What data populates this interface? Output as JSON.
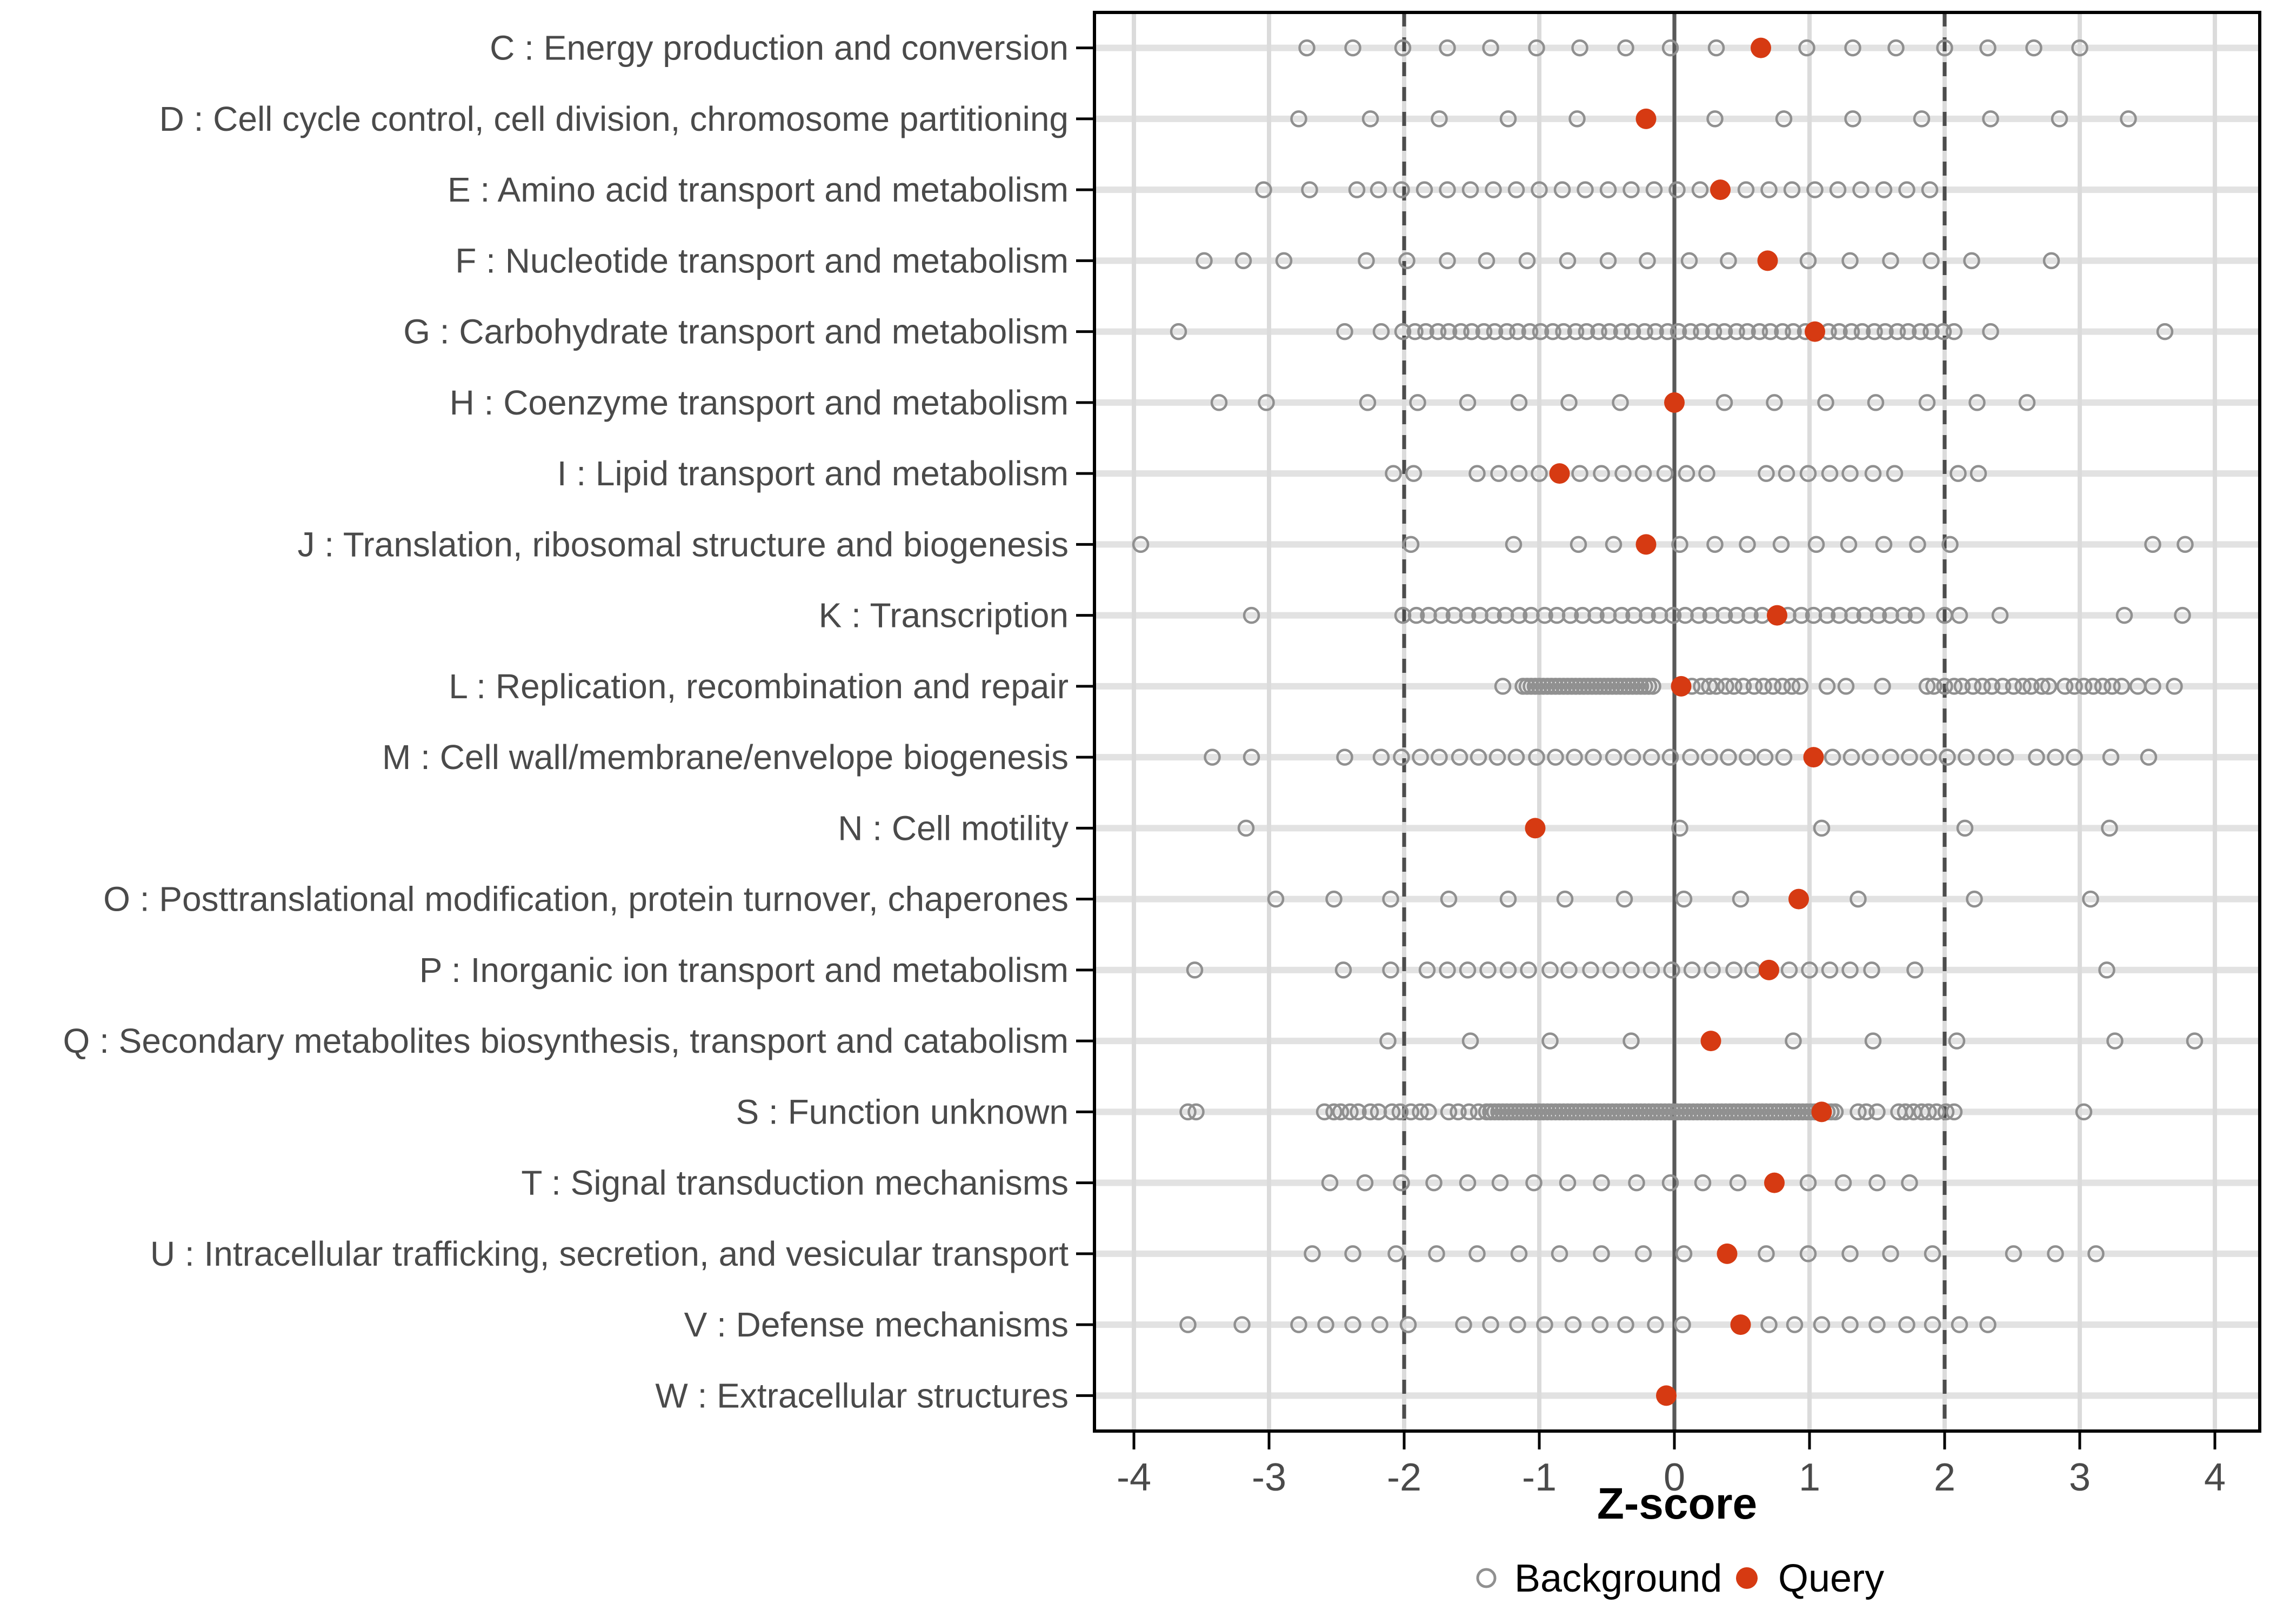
{
  "chart_data": {
    "type": "scatter",
    "title": "",
    "xlabel": "Z-score",
    "x_ticks": [
      "-4",
      "-3",
      "-2",
      "-1",
      "0",
      "1",
      "2",
      "3",
      "4"
    ],
    "x_tick_values": [
      -4,
      -3,
      -2,
      -1,
      0,
      1,
      2,
      3,
      4
    ],
    "xlim": [
      -4.29,
      4.33
    ],
    "grid": "on",
    "legend_position": "bottom",
    "reference_lines": {
      "solid_at": 0,
      "dashed_at": [
        -2,
        2
      ]
    },
    "legend": [
      {
        "label": "Background",
        "marker": "open-circle",
        "color": "#909090"
      },
      {
        "label": "Query",
        "marker": "filled-circle",
        "color": "#D63A12"
      }
    ],
    "categories": [
      {
        "code": "C",
        "label": "C : Energy production and conversion",
        "query": 0.64,
        "background": [
          -2.72,
          -2.38,
          -2.01,
          -1.68,
          -1.36,
          -1.02,
          -0.7,
          -0.36,
          -0.03,
          0.31,
          0.98,
          1.32,
          1.64,
          2.0,
          2.32,
          2.66,
          3.0
        ]
      },
      {
        "code": "D",
        "label": "D : Cell cycle control, cell division, chromosome partitioning",
        "query": -0.21,
        "background": [
          -2.78,
          -2.25,
          -1.74,
          -1.23,
          -0.72,
          0.3,
          0.81,
          1.32,
          1.83,
          2.34,
          2.85,
          3.36
        ]
      },
      {
        "code": "E",
        "label": "E : Amino acid transport and metabolism",
        "query": 0.34,
        "background": [
          -3.04,
          -2.7,
          -2.35,
          -2.19,
          -2.02,
          -1.85,
          -1.68,
          -1.51,
          -1.34,
          -1.17,
          -1.0,
          -0.83,
          -0.66,
          -0.49,
          -0.32,
          -0.15,
          0.02,
          0.19,
          0.53,
          0.7,
          0.87,
          1.04,
          1.21,
          1.38,
          1.55,
          1.72,
          1.89
        ]
      },
      {
        "code": "F",
        "label": "F : Nucleotide transport and metabolism",
        "query": 0.69,
        "background": [
          -3.48,
          -3.19,
          -2.89,
          -2.28,
          -1.98,
          -1.68,
          -1.39,
          -1.09,
          -0.79,
          -0.49,
          -0.2,
          0.11,
          0.4,
          0.99,
          1.3,
          1.6,
          1.9,
          2.2,
          2.79
        ]
      },
      {
        "code": "G",
        "label": "G : Carbohydrate transport and metabolism",
        "query": 1.04,
        "background": [
          -3.67,
          -2.44,
          -2.17,
          -2.01,
          -1.92,
          -1.84,
          -1.75,
          -1.67,
          -1.58,
          -1.5,
          -1.41,
          -1.33,
          -1.24,
          -1.16,
          -1.07,
          -0.99,
          -0.9,
          -0.82,
          -0.73,
          -0.65,
          -0.56,
          -0.48,
          -0.39,
          -0.31,
          -0.22,
          -0.14,
          -0.05,
          0.03,
          0.12,
          0.2,
          0.29,
          0.37,
          0.46,
          0.54,
          0.63,
          0.71,
          0.8,
          0.88,
          0.97,
          1.05,
          1.14,
          1.22,
          1.31,
          1.39,
          1.48,
          1.56,
          1.65,
          1.73,
          1.82,
          1.9,
          1.99,
          2.07,
          2.34,
          3.63
        ]
      },
      {
        "code": "H",
        "label": "H : Coenzyme transport and metabolism",
        "query": 0.0,
        "background": [
          -3.37,
          -3.02,
          -2.27,
          -1.9,
          -1.53,
          -1.15,
          -0.78,
          -0.4,
          0.37,
          0.74,
          1.12,
          1.49,
          1.87,
          2.24,
          2.61
        ]
      },
      {
        "code": "I",
        "label": "I : Lipid transport and metabolism",
        "query": -0.85,
        "background": [
          -2.08,
          -1.93,
          -1.46,
          -1.3,
          -1.15,
          -1.0,
          -0.7,
          -0.54,
          -0.38,
          -0.23,
          -0.07,
          0.09,
          0.24,
          0.68,
          0.83,
          0.99,
          1.15,
          1.3,
          1.47,
          1.63,
          2.1,
          2.25
        ]
      },
      {
        "code": "J",
        "label": "J : Translation, ribosomal structure and biogenesis",
        "query": -0.21,
        "background": [
          -3.95,
          -1.95,
          -1.19,
          -0.71,
          -0.45,
          0.04,
          0.3,
          0.54,
          0.79,
          1.05,
          1.29,
          1.55,
          1.8,
          2.04,
          3.54,
          3.78
        ]
      },
      {
        "code": "K",
        "label": "K : Transcription",
        "query": 0.76,
        "background": [
          -3.13,
          -2.01,
          -1.91,
          -1.82,
          -1.72,
          -1.63,
          -1.53,
          -1.44,
          -1.34,
          -1.25,
          -1.15,
          -1.06,
          -0.96,
          -0.87,
          -0.77,
          -0.68,
          -0.58,
          -0.49,
          -0.39,
          -0.3,
          -0.2,
          -0.11,
          -0.01,
          0.08,
          0.18,
          0.27,
          0.37,
          0.46,
          0.56,
          0.65,
          0.75,
          0.84,
          0.94,
          1.03,
          1.13,
          1.22,
          1.32,
          1.41,
          1.51,
          1.6,
          1.7,
          1.79,
          2.0,
          2.11,
          2.41,
          3.33,
          3.76
        ]
      },
      {
        "code": "L",
        "label": "L : Replication, recombination and repair",
        "query": 0.05,
        "background": [
          -1.27,
          -1.12,
          -1.09,
          -1.06,
          -1.03,
          -1.0,
          -0.97,
          -0.94,
          -0.91,
          -0.88,
          -0.85,
          -0.82,
          -0.79,
          -0.76,
          -0.73,
          -0.7,
          -0.67,
          -0.64,
          -0.61,
          -0.58,
          -0.55,
          -0.52,
          -0.49,
          -0.46,
          -0.43,
          -0.4,
          -0.37,
          -0.34,
          -0.31,
          -0.28,
          -0.25,
          -0.22,
          -0.19,
          -0.16,
          0.13,
          0.2,
          0.26,
          0.31,
          0.38,
          0.44,
          0.51,
          0.59,
          0.66,
          0.73,
          0.8,
          0.87,
          0.93,
          1.13,
          1.27,
          1.54,
          1.87,
          1.92,
          2.0,
          2.07,
          2.13,
          2.21,
          2.28,
          2.35,
          2.43,
          2.51,
          2.58,
          2.64,
          2.72,
          2.77,
          2.89,
          2.96,
          3.03,
          3.1,
          3.17,
          3.24,
          3.31,
          3.43,
          3.54,
          3.7
        ]
      },
      {
        "code": "M",
        "label": "M : Cell wall/membrane/envelope biogenesis",
        "query": 1.03,
        "background": [
          -3.42,
          -3.13,
          -2.44,
          -2.17,
          -2.02,
          -1.88,
          -1.74,
          -1.59,
          -1.45,
          -1.31,
          -1.17,
          -1.02,
          -0.88,
          -0.74,
          -0.6,
          -0.45,
          -0.31,
          -0.17,
          -0.03,
          0.12,
          0.26,
          0.4,
          0.54,
          0.67,
          0.81,
          1.17,
          1.31,
          1.45,
          1.6,
          1.74,
          1.88,
          2.02,
          2.16,
          2.31,
          2.45,
          2.68,
          2.82,
          2.96,
          3.23,
          3.51
        ]
      },
      {
        "code": "N",
        "label": "N : Cell motility",
        "query": -1.03,
        "background": [
          -3.17,
          0.04,
          1.09,
          2.15,
          3.22
        ]
      },
      {
        "code": "O",
        "label": "O : Posttranslational modification, protein turnover, chaperones",
        "query": 0.92,
        "background": [
          -2.95,
          -2.52,
          -2.1,
          -1.67,
          -1.23,
          -0.81,
          -0.37,
          0.07,
          0.49,
          1.36,
          2.22,
          3.08
        ]
      },
      {
        "code": "P",
        "label": "P : Inorganic ion transport and metabolism",
        "query": 0.7,
        "background": [
          -3.55,
          -2.45,
          -2.1,
          -1.83,
          -1.68,
          -1.53,
          -1.38,
          -1.23,
          -1.08,
          -0.92,
          -0.78,
          -0.62,
          -0.47,
          -0.32,
          -0.17,
          -0.02,
          0.13,
          0.28,
          0.44,
          0.58,
          0.85,
          1.0,
          1.15,
          1.3,
          1.46,
          1.78,
          3.2
        ]
      },
      {
        "code": "Q",
        "label": "Q : Secondary metabolites biosynthesis, transport and catabolism",
        "query": 0.27,
        "background": [
          -2.12,
          -1.51,
          -0.92,
          -0.32,
          0.88,
          1.47,
          2.09,
          3.26,
          3.85
        ]
      },
      {
        "code": "S",
        "label": "S : Function unknown",
        "query": 1.09,
        "background": [
          -3.6,
          -3.54,
          -2.59,
          -2.52,
          -2.47,
          -2.4,
          -2.34,
          -2.25,
          -2.19,
          -2.09,
          -2.03,
          -1.95,
          -1.88,
          -1.82,
          -1.67,
          -1.6,
          -1.52,
          -1.45,
          -1.39,
          -1.36,
          -1.33,
          -1.3,
          -1.27,
          -1.24,
          -1.21,
          -1.18,
          -1.15,
          -1.12,
          -1.09,
          -1.06,
          -1.03,
          -1.0,
          -0.97,
          -0.94,
          -0.91,
          -0.88,
          -0.85,
          -0.82,
          -0.79,
          -0.76,
          -0.73,
          -0.7,
          -0.67,
          -0.64,
          -0.61,
          -0.58,
          -0.55,
          -0.52,
          -0.49,
          -0.46,
          -0.43,
          -0.4,
          -0.37,
          -0.34,
          -0.31,
          -0.28,
          -0.25,
          -0.22,
          -0.19,
          -0.16,
          -0.13,
          -0.1,
          -0.07,
          -0.04,
          -0.01,
          0.02,
          0.05,
          0.08,
          0.11,
          0.14,
          0.17,
          0.2,
          0.23,
          0.26,
          0.29,
          0.32,
          0.35,
          0.38,
          0.41,
          0.44,
          0.47,
          0.5,
          0.53,
          0.56,
          0.59,
          0.62,
          0.65,
          0.68,
          0.71,
          0.74,
          0.77,
          0.8,
          0.83,
          0.86,
          0.89,
          0.92,
          0.95,
          0.98,
          1.01,
          1.04,
          1.07,
          1.1,
          1.13,
          1.16,
          1.19,
          1.36,
          1.42,
          1.5,
          1.66,
          1.71,
          1.77,
          1.83,
          1.88,
          1.94,
          2.01,
          2.07,
          3.03
        ]
      },
      {
        "code": "T",
        "label": "T : Signal transduction mechanisms",
        "query": 0.74,
        "background": [
          -2.55,
          -2.29,
          -2.02,
          -1.78,
          -1.53,
          -1.29,
          -1.04,
          -0.79,
          -0.54,
          -0.28,
          -0.03,
          0.21,
          0.47,
          0.99,
          1.25,
          1.5,
          1.74
        ]
      },
      {
        "code": "U",
        "label": "U : Intracellular trafficking, secretion, and vesicular transport",
        "query": 0.39,
        "background": [
          -2.68,
          -2.38,
          -2.06,
          -1.76,
          -1.46,
          -1.15,
          -0.85,
          -0.54,
          -0.23,
          0.07,
          0.68,
          0.99,
          1.3,
          1.6,
          1.91,
          2.51,
          2.82,
          3.12
        ]
      },
      {
        "code": "V",
        "label": "V : Defense mechanisms",
        "query": 0.49,
        "background": [
          -3.6,
          -3.2,
          -2.78,
          -2.58,
          -2.38,
          -2.18,
          -1.97,
          -1.56,
          -1.36,
          -1.16,
          -0.96,
          -0.75,
          -0.55,
          -0.36,
          -0.14,
          0.06,
          0.7,
          0.89,
          1.09,
          1.3,
          1.5,
          1.72,
          1.91,
          2.11,
          2.32
        ]
      },
      {
        "code": "W",
        "label": "W : Extracellular structures",
        "query": -0.06,
        "background": []
      }
    ]
  },
  "colors": {
    "panel_background": "#FFFFFF",
    "panel_border": "#000000",
    "grid_horizontal": "#E2E2E2",
    "grid_vertical": "#DBDBDB",
    "zero_line": "#595959",
    "dashed_line": "#4D4D4D",
    "background_point": "#909090",
    "query_point": "#D63A12",
    "axis_text": "#4A4A4A",
    "axis_title": "#000000",
    "legend_text": "#000000",
    "tick_mark": "#000000"
  }
}
